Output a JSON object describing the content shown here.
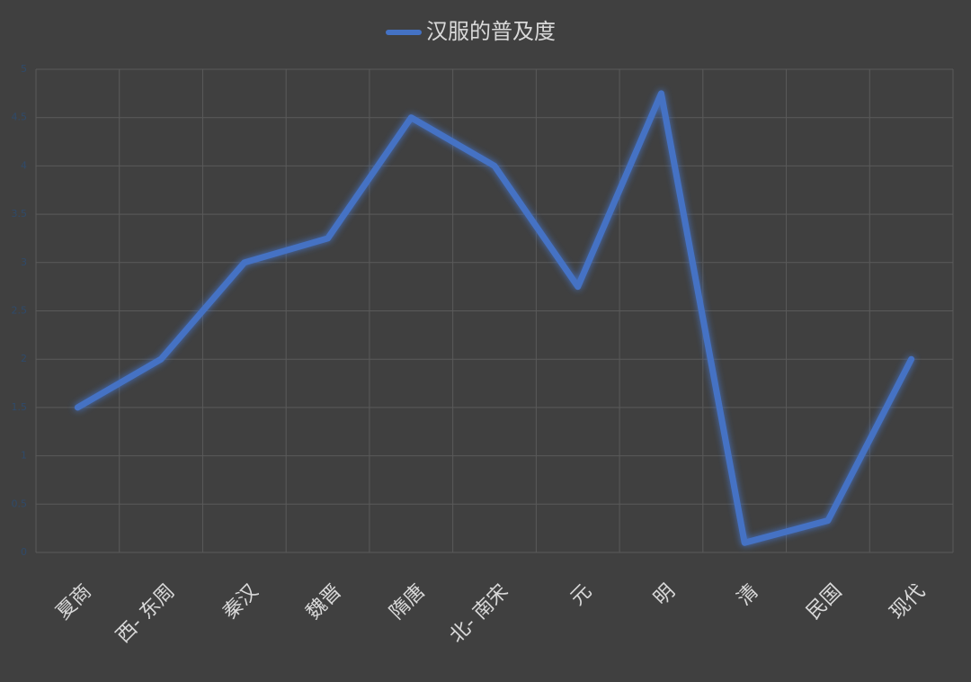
{
  "chart_data": {
    "type": "line",
    "categories": [
      "夏商",
      "西- 东周",
      "秦汉",
      "魏晋",
      "隋唐",
      "北- 南宋",
      "元",
      "明",
      "清",
      "民国",
      "现代"
    ],
    "series": [
      {
        "name": "汉服的普及度",
        "color": "#4472c4",
        "values": [
          1.5,
          2,
          3,
          3.25,
          4.5,
          4,
          2.75,
          4.75,
          0.1,
          0.33,
          2
        ]
      }
    ],
    "ylim": [
      0,
      5
    ],
    "yticks": [
      0,
      0.5,
      1,
      1.5,
      2,
      2.5,
      3,
      3.5,
      4,
      4.5,
      5
    ],
    "grid": true,
    "legend": "top"
  }
}
